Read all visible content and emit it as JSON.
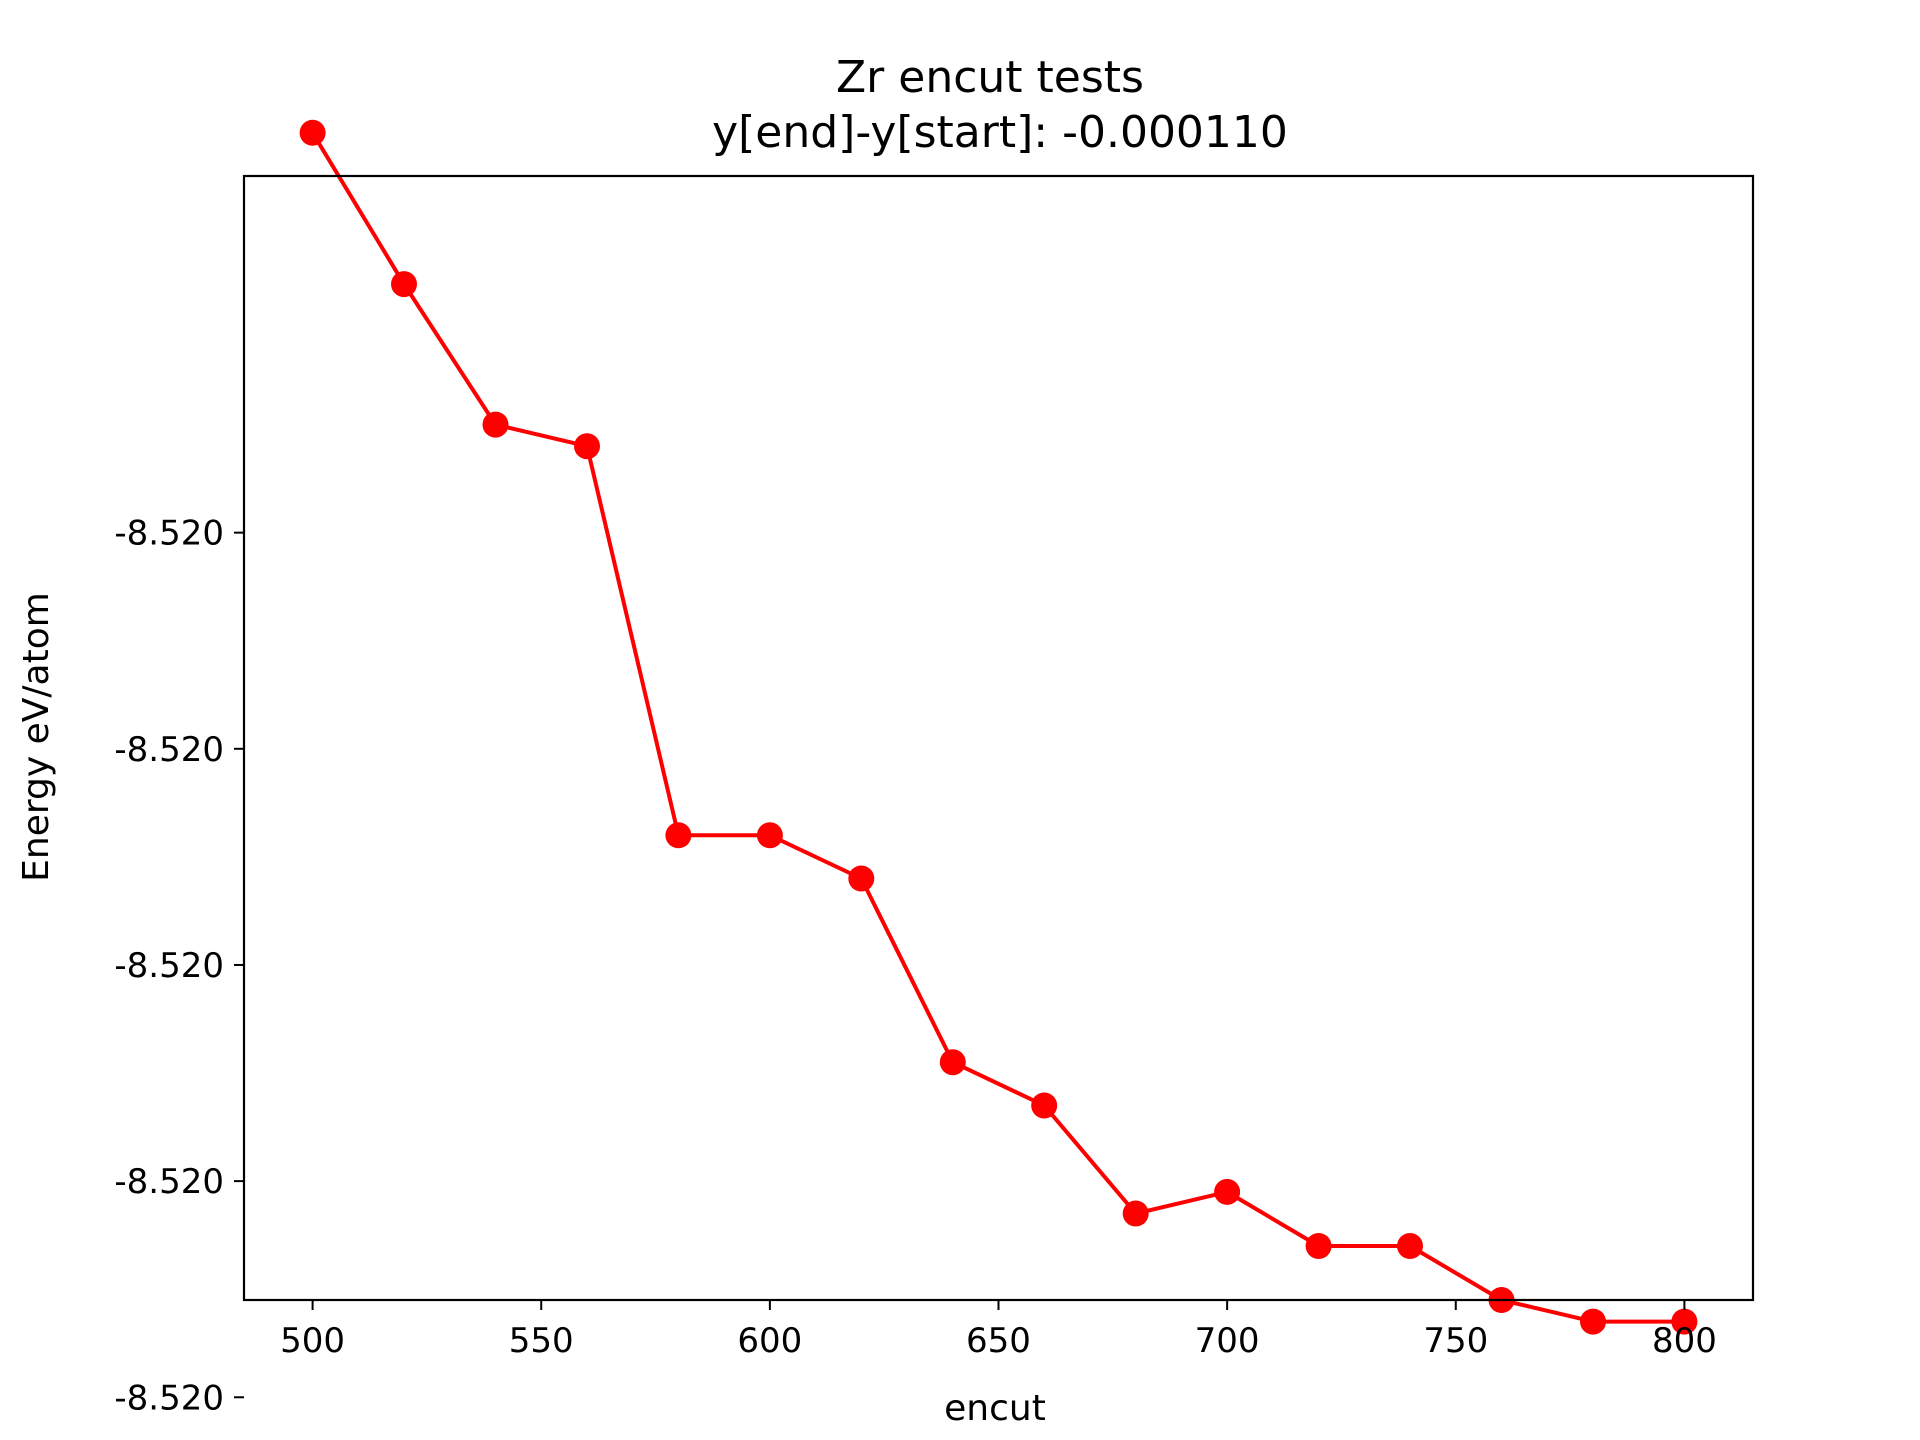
{
  "chart_data": {
    "type": "line",
    "title": "Zr encut tests",
    "subtitle": "y[end]-y[start]:  -0.000110",
    "xlabel": "encut",
    "ylabel": "Energy eV/atom",
    "xlim": [
      485,
      815
    ],
    "ylim": [
      -8.520071,
      -8.519967
    ],
    "x_ticks": [
      500,
      550,
      600,
      650,
      700,
      750,
      800
    ],
    "y_ticks": [
      {
        "value": -8.52,
        "label": "-8.520"
      },
      {
        "value": -8.52002,
        "label": "-8.520"
      },
      {
        "value": -8.52004,
        "label": "-8.520"
      },
      {
        "value": -8.52006,
        "label": "-8.520"
      },
      {
        "value": -8.52008,
        "label": "-8.520"
      }
    ],
    "grid": false,
    "series": [
      {
        "color": "#ff0000",
        "marker": "circle",
        "x": [
          500,
          520,
          540,
          560,
          580,
          600,
          620,
          640,
          660,
          680,
          700,
          720,
          740,
          760,
          780,
          800
        ],
        "y": [
          -8.519963,
          -8.519977,
          -8.51999,
          -8.519992,
          -8.520028,
          -8.520028,
          -8.520032,
          -8.520049,
          -8.520053,
          -8.520063,
          -8.520061,
          -8.520066,
          -8.520066,
          -8.520071,
          -8.520073,
          -8.520073
        ]
      }
    ]
  }
}
